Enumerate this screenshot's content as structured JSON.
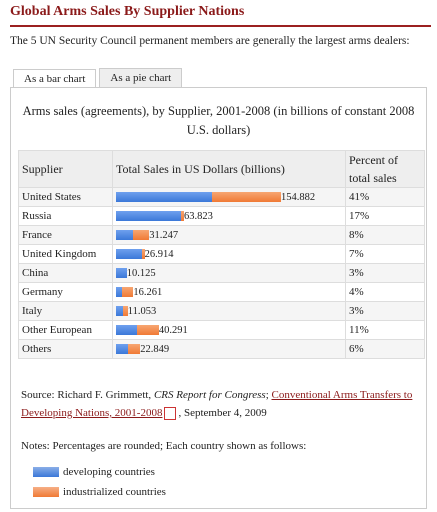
{
  "header": {
    "title": "Global Arms Sales By Supplier Nations",
    "intro": "The 5 UN Security Council permanent members are generally the largest arms dealers:"
  },
  "tabs": [
    "As a bar chart",
    "As a pie chart"
  ],
  "table": {
    "caption": "Arms sales (agreements), by Supplier, 2001-2008 (in billions of constant 2008 U.S. dollars)",
    "columns": [
      "Supplier",
      "Total Sales in US Dollars (billions)",
      "Percent of total sales"
    ],
    "rows": [
      {
        "supplier": "United States",
        "total": 154.882,
        "percent": "41%",
        "developing": 90,
        "industrialized": 64.9
      },
      {
        "supplier": "Russia",
        "total": 63.823,
        "percent": "17%",
        "developing": 61,
        "industrialized": 2.8
      },
      {
        "supplier": "France",
        "total": 31.247,
        "percent": "8%",
        "developing": 16,
        "industrialized": 15.2
      },
      {
        "supplier": "United Kingdom",
        "total": 26.914,
        "percent": "7%",
        "developing": 24,
        "industrialized": 2.9
      },
      {
        "supplier": "China",
        "total": 10.125,
        "percent": "3%",
        "developing": 10,
        "industrialized": 0.1
      },
      {
        "supplier": "Germany",
        "total": 16.261,
        "percent": "4%",
        "developing": 6,
        "industrialized": 10.3
      },
      {
        "supplier": "Italy",
        "total": 11.053,
        "percent": "3%",
        "developing": 7,
        "industrialized": 4
      },
      {
        "supplier": "Other European",
        "total": 40.291,
        "percent": "11%",
        "developing": 20,
        "industrialized": 20.3
      },
      {
        "supplier": "Others",
        "total": 22.849,
        "percent": "6%",
        "developing": 11,
        "industrialized": 11.8
      }
    ]
  },
  "source": {
    "lead": "Source: Richard F. Grimmett, ",
    "italic": "CRS Report for Congress",
    "sep": "; ",
    "link": "Conventional Arms Transfers to Developing Nations, 2001-2008",
    "date": ", September 4, 2009"
  },
  "notes": "Notes: Percentages are rounded; Each country shown as follows:",
  "legend": [
    {
      "name": "developing countries",
      "color": "#3b78d8"
    },
    {
      "name": "industrialized countries",
      "color": "#f07a35"
    }
  ]
}
